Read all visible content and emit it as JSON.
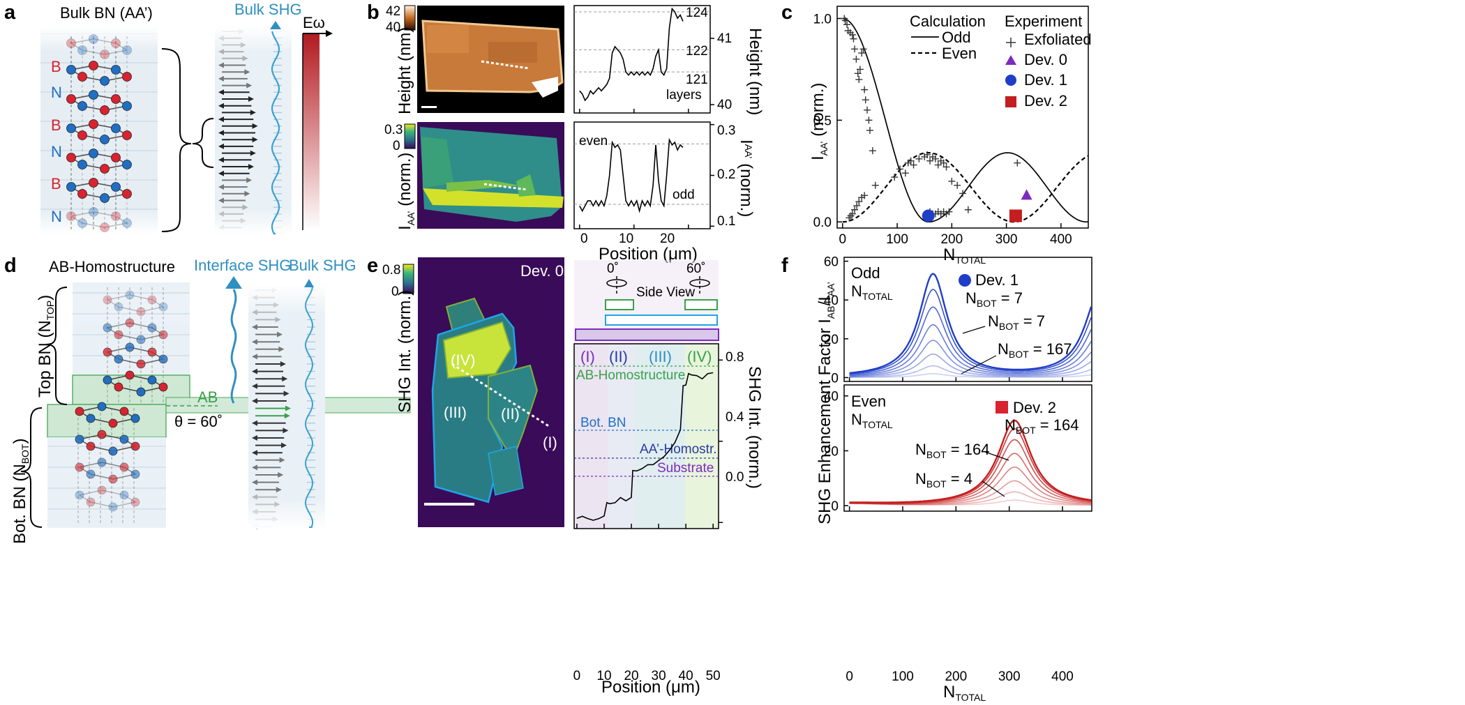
{
  "figure": {
    "panel_labels": [
      "a",
      "b",
      "c",
      "d",
      "e",
      "f"
    ],
    "a": {
      "title": "Bulk BN (AA’)",
      "shg_label": "Bulk SHG",
      "energy_label": "Eω",
      "layer_labels": [
        "B",
        "N",
        "B",
        "N",
        "B",
        "N"
      ]
    },
    "b": {
      "height_bar": {
        "max": "42",
        "min": "40",
        "label": "Height (nm)"
      },
      "iaa_bar": {
        "max": "0.3",
        "min": "0",
        "label_main": "I",
        "label_sub": "AA’",
        "label_rest": " (norm.)"
      },
      "height_profile": {
        "ylabel": "Height (nm)",
        "yticks": [
          "41",
          "40"
        ],
        "layer_annotations": [
          "124",
          "122",
          "121",
          "layers"
        ]
      },
      "iaa_profile": {
        "ylabel_main": "I",
        "ylabel_sub": "AA’",
        "ylabel_rest": " (norm.)",
        "yticks": [
          "0.3",
          "0.2",
          "0.1"
        ],
        "annotations": [
          "even",
          "odd"
        ]
      },
      "xlabel": "Position (μm)",
      "xticks": [
        "0",
        "10",
        "20"
      ]
    },
    "c": {
      "ylabel_main": "I",
      "ylabel_sub": "AA’",
      "ylabel_rest": " (norm.)",
      "xlabel_main": "N",
      "xlabel_sub": "TOTAL",
      "xticks": [
        "0",
        "100",
        "200",
        "300",
        "400"
      ],
      "yticks": [
        "0.0",
        "0.5",
        "1.0"
      ],
      "legend_calc_title": "Calculation",
      "legend_calc": [
        "Odd",
        "Even"
      ],
      "legend_exp_title": "Experiment",
      "legend_exp": [
        "Exfoliated",
        "Dev. 0",
        "Dev. 1",
        "Dev. 2"
      ]
    },
    "d": {
      "title": "AB-Homostructure",
      "interface_shg": "Interface SHG",
      "bulk_shg": "Bulk SHG",
      "top_bn": "Top BN (N",
      "top_bn_sub": "TOP",
      "bot_bn": "Bot. BN (N",
      "bot_bn_sub": "BOT",
      "ab": "AB",
      "theta": "θ = 60˚"
    },
    "e": {
      "colorbar": {
        "max": "0.8",
        "min": "0",
        "label": "SHG Int. (norm.)"
      },
      "device": "Dev. 0",
      "regions": [
        "(IV)",
        "(III)",
        "(II)",
        "(I)"
      ],
      "angles": [
        "0˚",
        "60˚"
      ],
      "side_view": "Side View",
      "region_labels": [
        "(I)",
        "(II)",
        "(III)",
        "(IV)"
      ],
      "levels": [
        "AB-Homostructure",
        "Bot. BN",
        "AA’-Homostr.",
        "Substrate"
      ],
      "ylabel": "SHG Int. (norm.)",
      "yticks": [
        "0.8",
        "0.4",
        "0.0"
      ],
      "xticks": [
        "0",
        "10",
        "20",
        "30",
        "40",
        "50"
      ],
      "xlabel": "Position (μm)"
    },
    "f": {
      "ylabel": "SHG Enhancement Factor I",
      "ylabel_sub1": "AB",
      "ylabel_mid": "/I",
      "ylabel_sub2": "AA’",
      "xlabel_main": "N",
      "xlabel_sub": "TOTAL",
      "xticks": [
        "0",
        "100",
        "200",
        "300",
        "400"
      ],
      "top": {
        "title": "Odd",
        "title2_main": "N",
        "title2_sub": "TOTAL",
        "yticks": [
          "60",
          "40",
          "20",
          "0"
        ],
        "dev": "Dev. 1",
        "dev_nbot": "N",
        "dev_nbot_sub": "BOT",
        "dev_nbot_val": " = 7",
        "ann1": " = 7",
        "ann2": " = 167"
      },
      "bottom": {
        "title": "Even",
        "title2_main": "N",
        "title2_sub": "TOTAL",
        "yticks": [
          "40",
          "20",
          "0"
        ],
        "dev": "Dev. 2",
        "dev_nbot_val": " = 164",
        "ann1": " = 164",
        "ann2": " = 4"
      }
    },
    "colors": {
      "boron": "#d9232e",
      "nitrogen": "#1f6fc5",
      "shg_blue": "#2f8fc0",
      "green": "#3aa04a",
      "odd_blue": "#1f3ec8",
      "even_red": "#c41e1e",
      "purple": "#7c2bbd"
    }
  },
  "chart_data": [
    {
      "type": "line",
      "title": "",
      "xlabel": "Position (μm)",
      "ylabel": "Height (nm)",
      "xlim": [
        -1,
        24
      ],
      "ylim": [
        39.85,
        41.55
      ],
      "series": [
        {
          "name": "",
          "x": [
            0,
            0.5,
            1,
            1.5,
            2,
            2.5,
            3,
            3.5,
            4,
            4.5,
            5,
            5.5,
            6,
            6.5,
            7,
            7.5,
            8,
            8.5,
            9,
            9.5,
            10,
            10.5,
            11,
            11.5,
            12,
            12.5,
            13,
            13.5,
            14,
            14.5,
            15,
            15.5,
            16,
            16.5,
            17,
            17.5,
            18,
            18.5,
            19
          ],
          "y": [
            40.2,
            40.15,
            40.05,
            40.1,
            40.2,
            40.15,
            40.2,
            40.25,
            40.2,
            40.25,
            40.3,
            40.4,
            40.8,
            40.9,
            40.85,
            40.8,
            40.7,
            40.5,
            40.45,
            40.5,
            40.45,
            40.5,
            40.45,
            40.5,
            40.45,
            40.5,
            40.45,
            40.55,
            40.75,
            40.85,
            40.5,
            40.45,
            40.55,
            41.2,
            41.5,
            41.45,
            41.35,
            41.4,
            41.3
          ]
        }
      ]
    },
    {
      "type": "line",
      "title": "",
      "xlabel": "Position (μm)",
      "ylabel": "I AA’ (norm.)",
      "xlim": [
        -1,
        24
      ],
      "ylim": [
        0.095,
        0.305
      ],
      "series": [
        {
          "name": "",
          "x": [
            0,
            0.5,
            1,
            1.5,
            2,
            2.5,
            3,
            3.5,
            4,
            4.5,
            5,
            5.5,
            6,
            6.5,
            7,
            7.5,
            8,
            8.5,
            9,
            9.5,
            10,
            10.5,
            11,
            11.5,
            12,
            12.5,
            13,
            13.5,
            14,
            14.5,
            15,
            15.5,
            16,
            16.5,
            17,
            17.5,
            18,
            18.5,
            19
          ],
          "y": [
            0.14,
            0.13,
            0.14,
            0.15,
            0.15,
            0.14,
            0.15,
            0.14,
            0.15,
            0.14,
            0.16,
            0.2,
            0.265,
            0.255,
            0.26,
            0.25,
            0.2,
            0.15,
            0.14,
            0.15,
            0.14,
            0.15,
            0.13,
            0.15,
            0.14,
            0.15,
            0.14,
            0.18,
            0.26,
            0.19,
            0.15,
            0.14,
            0.2,
            0.27,
            0.26,
            0.265,
            0.25,
            0.26,
            0.255
          ]
        }
      ]
    },
    {
      "type": "scatter",
      "title": "",
      "xlabel": "N TOTAL",
      "ylabel": "I AA’ (norm.)",
      "xlim": [
        -10,
        450
      ],
      "ylim": [
        -0.03,
        1.06
      ],
      "series": [
        {
          "name": "Odd",
          "type": "line",
          "x": [
            0,
            25,
            50,
            75,
            100,
            125,
            150,
            175,
            200,
            225,
            250,
            275,
            300,
            325,
            350,
            375,
            400,
            425,
            450
          ],
          "y": [
            1.0,
            0.88,
            0.6,
            0.3,
            0.1,
            0.02,
            0.01,
            0.02,
            0.06,
            0.14,
            0.22,
            0.3,
            0.34,
            0.31,
            0.23,
            0.13,
            0.05,
            0.01,
            0.0
          ]
        },
        {
          "name": "Even",
          "type": "line",
          "x": [
            0,
            25,
            50,
            75,
            100,
            125,
            150,
            175,
            200,
            225,
            250,
            275,
            300,
            325,
            350,
            375,
            400,
            425,
            450
          ],
          "y": [
            0.0,
            0.05,
            0.13,
            0.22,
            0.29,
            0.33,
            0.33,
            0.3,
            0.23,
            0.14,
            0.07,
            0.03,
            0.02,
            0.04,
            0.09,
            0.15,
            0.21,
            0.25,
            0.27
          ]
        },
        {
          "name": "Exfoliated",
          "x": [
            3,
            5,
            8,
            10,
            14,
            18,
            20,
            22,
            25,
            28,
            30,
            32,
            35,
            38,
            40,
            42,
            45,
            48,
            50,
            55,
            12,
            15,
            18,
            22,
            26,
            30,
            35,
            40,
            60,
            95,
            105,
            115,
            120,
            125,
            130,
            140,
            150,
            155,
            160,
            165,
            170,
            175,
            180,
            185,
            190,
            200,
            210,
            220,
            230,
            160,
            165,
            170,
            175,
            180,
            185,
            190,
            195,
            320
          ],
          "y": [
            1.0,
            0.99,
            0.97,
            0.94,
            0.93,
            0.92,
            0.9,
            0.85,
            0.8,
            0.73,
            0.7,
            0.75,
            0.83,
            0.85,
            0.65,
            0.6,
            0.55,
            0.5,
            0.45,
            0.35,
            0.02,
            0.03,
            0.04,
            0.06,
            0.08,
            0.1,
            0.12,
            0.13,
            0.18,
            0.22,
            0.26,
            0.24,
            0.29,
            0.3,
            0.28,
            0.31,
            0.32,
            0.33,
            0.3,
            0.32,
            0.31,
            0.28,
            0.3,
            0.29,
            0.27,
            0.2,
            0.18,
            0.14,
            0.06,
            0.05,
            0.04,
            0.04,
            0.05,
            0.04,
            0.05,
            0.04,
            0.05,
            0.29
          ]
        },
        {
          "name": "Dev. 0",
          "x": [
            337
          ],
          "y": [
            0.13
          ]
        },
        {
          "name": "Dev. 1",
          "x": [
            157
          ],
          "y": [
            0.03
          ]
        },
        {
          "name": "Dev. 2",
          "x": [
            317
          ],
          "y": [
            0.03
          ]
        }
      ]
    },
    {
      "type": "line",
      "title": "",
      "xlabel": "Position (μm)",
      "ylabel": "SHG Int. (norm.)",
      "xlim": [
        -1,
        52
      ],
      "ylim": [
        -0.03,
        0.88
      ],
      "series": [
        {
          "name": "",
          "x": [
            0,
            2,
            4,
            6,
            8,
            10,
            11,
            12,
            14,
            16,
            18,
            20,
            20.5,
            22,
            24,
            26,
            28,
            30,
            32,
            34,
            36,
            38,
            39,
            40,
            41,
            42,
            44,
            46,
            48,
            50
          ],
          "y": [
            0.02,
            0.03,
            0.02,
            0.01,
            0.02,
            0.03,
            0.1,
            0.09,
            0.1,
            0.12,
            0.11,
            0.12,
            0.26,
            0.25,
            0.27,
            0.28,
            0.29,
            0.3,
            0.33,
            0.35,
            0.4,
            0.45,
            0.68,
            0.67,
            0.74,
            0.72,
            0.73,
            0.7,
            0.74,
            0.73
          ]
        }
      ]
    },
    {
      "type": "line",
      "title": "Odd N TOTAL",
      "xlabel": "N TOTAL",
      "ylabel": "SHG Enhancement Factor",
      "xlim": [
        -10,
        455
      ],
      "ylim": [
        -2,
        62
      ],
      "series": [
        {
          "name": "N BOT = 7",
          "peak_x": [
            157,
            455
          ],
          "peak_y": [
            53,
            44
          ]
        },
        {
          "name": "N BOT = 167",
          "peak_x": [
            157,
            455
          ],
          "peak_y": [
            2,
            2
          ]
        }
      ]
    },
    {
      "type": "line",
      "title": "Even N TOTAL",
      "xlabel": "N TOTAL",
      "ylabel": "SHG Enhancement Factor",
      "xlim": [
        -10,
        455
      ],
      "ylim": [
        -2,
        44
      ],
      "series": [
        {
          "name": "N BOT = 164",
          "peak_x": [
            310
          ],
          "peak_y": [
            31
          ]
        },
        {
          "name": "N BOT = 4",
          "peak_x": [
            310
          ],
          "peak_y": [
            2
          ]
        }
      ]
    }
  ]
}
